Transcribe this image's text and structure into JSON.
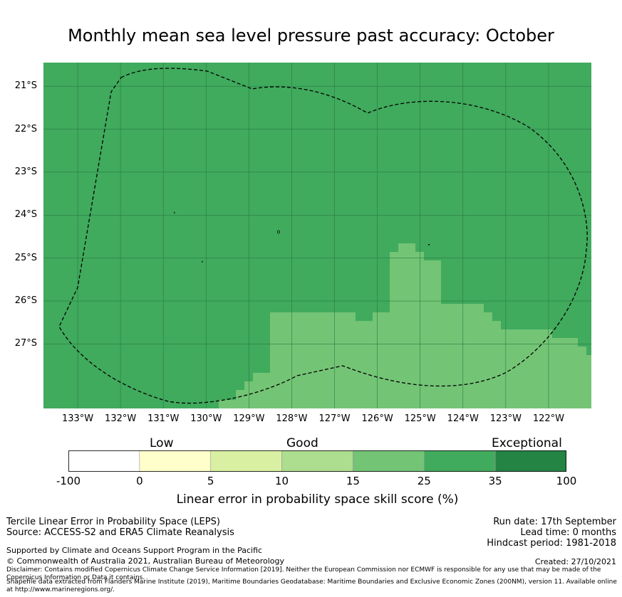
{
  "title": "Monthly mean sea level pressure past accuracy: October",
  "map": {
    "lat_labels": [
      "21°S",
      "22°S",
      "23°S",
      "24°S",
      "25°S",
      "26°S",
      "27°S"
    ],
    "lon_labels": [
      "133°W",
      "132°W",
      "131°W",
      "130°W",
      "129°W",
      "128°W",
      "127°W",
      "126°W",
      "125°W",
      "124°W",
      "123°W",
      "122°W"
    ],
    "lon_range": [
      -133.8,
      -121.0
    ],
    "lat_range": [
      -28.5,
      -20.45
    ],
    "dominant_class": "25-35",
    "secondary_class": "15-25",
    "colors": {
      "class_25_35": "#40aa5d",
      "class_15_25": "#74c476",
      "grid": "#2a7a42",
      "boundary": "#000000"
    }
  },
  "legend": {
    "categories": [
      "Low",
      "Good",
      "Exceptional"
    ],
    "ticks": [
      "-100",
      "0",
      "5",
      "10",
      "15",
      "25",
      "35",
      "100"
    ],
    "colors": [
      "#ffffff",
      "#ffffcc",
      "#d9f0a3",
      "#addd8e",
      "#74c476",
      "#41ab5d",
      "#238443"
    ],
    "label": "Linear error in probability space skill score (%)"
  },
  "footer": {
    "left": [
      "Tercile Linear Error in Probability Space (LEPS)",
      "Source: ACCESS-S2 and ERA5 Climate Reanalysis"
    ],
    "right": [
      "Run date: 17th September",
      "Lead time: 0 months",
      "Hindcast period: 1981-2018"
    ],
    "support": "Supported by Climate and Oceans Support Program in the Pacific",
    "copyright": "© Commonwealth of Australia 2021, Australian Bureau of Meteorology",
    "created": "Created: 27/10/2021",
    "disclaimer": "Disclaimer: Contains modified Copernicus Climate Change Service Information [2019]. Neither the European Commission nor ECMWF is responsible for any use that may be made of the Copernicus Information or Data it contains.",
    "shapefile": "Shapefile data extracted from Flanders Marine Institute (2019), Maritime Boundaries Geodatabase: Maritime Boundaries and Exclusive Economic Zones (200NM), version 11. Available online at http://www.marineregions.org/."
  }
}
